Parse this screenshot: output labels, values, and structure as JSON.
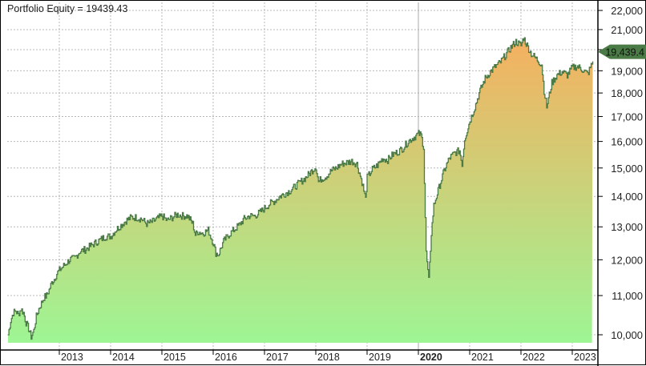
{
  "title": "Portfolio Equity = 19439.43",
  "current_value_badge": "19,439.4",
  "colors": {
    "line": "#4a7a45",
    "fill_top": "#f5b060",
    "fill_bottom": "#9ef594",
    "grid": "#b8b8b8",
    "badge": "#4a7a45",
    "axis": "#000000"
  },
  "y_ticks": [
    {
      "label": "22,000",
      "value": 22000
    },
    {
      "label": "21,000",
      "value": 21000
    },
    {
      "label": "20,000",
      "value": 20000
    },
    {
      "label": "19,000",
      "value": 19000
    },
    {
      "label": "18,000",
      "value": 18000
    },
    {
      "label": "17,000",
      "value": 17000
    },
    {
      "label": "16,000",
      "value": 16000
    },
    {
      "label": "15,000",
      "value": 15000
    },
    {
      "label": "14,000",
      "value": 14000
    },
    {
      "label": "13,000",
      "value": 13000
    },
    {
      "label": "12,000",
      "value": 12000
    },
    {
      "label": "11,000",
      "value": 11000
    },
    {
      "label": "10,000",
      "value": 10000
    }
  ],
  "x_ticks": [
    {
      "label": "2013",
      "bold": false
    },
    {
      "label": "2014",
      "bold": false
    },
    {
      "label": "2015",
      "bold": false
    },
    {
      "label": "2016",
      "bold": false
    },
    {
      "label": "2017",
      "bold": false
    },
    {
      "label": "2018",
      "bold": false
    },
    {
      "label": "2019",
      "bold": false
    },
    {
      "label": "2020",
      "bold": true
    },
    {
      "label": "2021",
      "bold": false
    },
    {
      "label": "2022",
      "bold": false
    },
    {
      "label": "2023",
      "bold": false
    }
  ],
  "chart_data": {
    "type": "area",
    "title": "Portfolio Equity = 19439.43",
    "xlabel": "",
    "ylabel": "",
    "y_scale": "log",
    "ylim": [
      9800,
      22200
    ],
    "xlim": [
      2012.0,
      2023.5
    ],
    "grid": true,
    "last_value": 19439.43,
    "series": [
      {
        "name": "Portfolio Equity",
        "x": [
          2012.0,
          2012.05,
          2012.1,
          2012.15,
          2012.2,
          2012.25,
          2012.3,
          2012.35,
          2012.4,
          2012.45,
          2012.5,
          2012.55,
          2012.6,
          2012.65,
          2012.7,
          2012.75,
          2012.8,
          2012.85,
          2012.9,
          2012.95,
          2013.0,
          2013.1,
          2013.2,
          2013.3,
          2013.4,
          2013.5,
          2013.6,
          2013.7,
          2013.8,
          2013.9,
          2014.0,
          2014.1,
          2014.2,
          2014.3,
          2014.4,
          2014.5,
          2014.6,
          2014.7,
          2014.8,
          2014.9,
          2015.0,
          2015.1,
          2015.2,
          2015.3,
          2015.4,
          2015.5,
          2015.6,
          2015.65,
          2015.7,
          2015.8,
          2015.9,
          2016.0,
          2016.05,
          2016.1,
          2016.2,
          2016.3,
          2016.4,
          2016.5,
          2016.6,
          2016.7,
          2016.8,
          2016.9,
          2017.0,
          2017.1,
          2017.2,
          2017.3,
          2017.4,
          2017.5,
          2017.6,
          2017.7,
          2017.8,
          2017.9,
          2018.0,
          2018.05,
          2018.1,
          2018.2,
          2018.3,
          2018.4,
          2018.5,
          2018.6,
          2018.7,
          2018.8,
          2018.9,
          2018.97,
          2019.0,
          2019.1,
          2019.2,
          2019.3,
          2019.4,
          2019.5,
          2019.6,
          2019.7,
          2019.8,
          2019.9,
          2020.0,
          2020.05,
          2020.1,
          2020.15,
          2020.2,
          2020.25,
          2020.3,
          2020.4,
          2020.5,
          2020.6,
          2020.7,
          2020.8,
          2020.85,
          2020.9,
          2021.0,
          2021.1,
          2021.2,
          2021.3,
          2021.4,
          2021.5,
          2021.6,
          2021.7,
          2021.8,
          2021.9,
          2022.0,
          2022.05,
          2022.1,
          2022.2,
          2022.3,
          2022.4,
          2022.45,
          2022.5,
          2022.6,
          2022.7,
          2022.8,
          2022.9,
          2023.0,
          2023.1,
          2023.2,
          2023.3,
          2023.4
        ],
        "values": [
          10000,
          10350,
          10550,
          10600,
          10500,
          10650,
          10550,
          10300,
          10150,
          9950,
          10100,
          10450,
          10650,
          10800,
          10950,
          11000,
          11150,
          11350,
          11450,
          11600,
          11700,
          11850,
          12000,
          12050,
          12250,
          12300,
          12400,
          12500,
          12600,
          12700,
          12700,
          12900,
          13050,
          13200,
          13300,
          13300,
          13250,
          13100,
          13150,
          13250,
          13350,
          13200,
          13300,
          13400,
          13350,
          13350,
          13100,
          12750,
          12850,
          12800,
          12900,
          12500,
          12200,
          12150,
          12550,
          12750,
          12900,
          13050,
          13250,
          13350,
          13350,
          13450,
          13600,
          13750,
          13850,
          14000,
          14100,
          14200,
          14350,
          14500,
          14650,
          14850,
          15050,
          14500,
          14600,
          14700,
          14900,
          15000,
          15150,
          15200,
          15250,
          15150,
          14500,
          13900,
          14650,
          14950,
          15100,
          15350,
          15300,
          15500,
          15600,
          15750,
          16000,
          16150,
          16300,
          16250,
          15800,
          12200,
          11400,
          12800,
          13700,
          14300,
          14900,
          15350,
          15550,
          15650,
          15150,
          16100,
          16800,
          17400,
          18100,
          18650,
          18950,
          19200,
          19400,
          19750,
          20100,
          20400,
          20200,
          20600,
          20300,
          19800,
          19550,
          19300,
          18100,
          17400,
          18450,
          18800,
          18950,
          18800,
          19150,
          19200,
          19050,
          18850,
          19439.43
        ]
      }
    ]
  }
}
